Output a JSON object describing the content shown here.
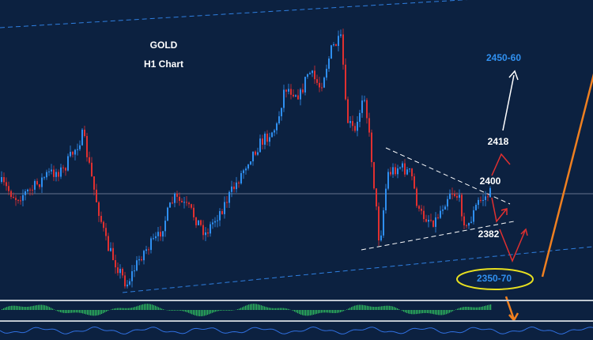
{
  "header": {
    "title": "GOLD",
    "subtitle": "H1 Chart"
  },
  "annotations": [
    "2450-60",
    "2418",
    "2400",
    "2382",
    "2350-70"
  ]
}
